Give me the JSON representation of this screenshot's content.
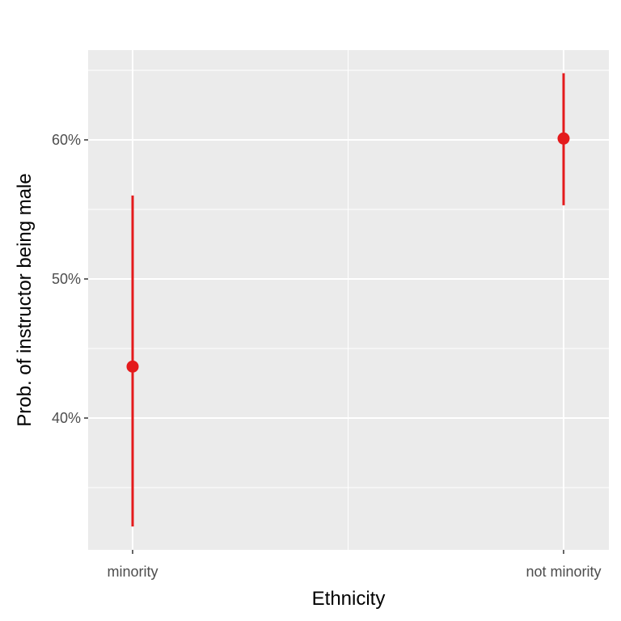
{
  "chart_data": {
    "type": "scatter",
    "title": "",
    "xlabel": "Ethnicity",
    "ylabel": "Prob. of instructor being male",
    "categories": [
      "minority",
      "not minority"
    ],
    "series": [
      {
        "values": [
          0.437,
          0.601
        ],
        "lower": [
          0.322,
          0.553
        ],
        "upper": [
          0.56,
          0.648
        ],
        "color": "#e41a1c"
      }
    ],
    "ylim": [
      0.3,
      0.66
    ],
    "y_major_ticks": [
      0.4,
      0.5,
      0.6
    ],
    "y_tick_labels": [
      "40%",
      "50%",
      "60%"
    ],
    "y_minor_ticks": [
      0.35,
      0.45,
      0.55,
      0.65
    ],
    "grid": true,
    "panel_background": "#ebebeb",
    "grid_color": "#ffffff"
  }
}
